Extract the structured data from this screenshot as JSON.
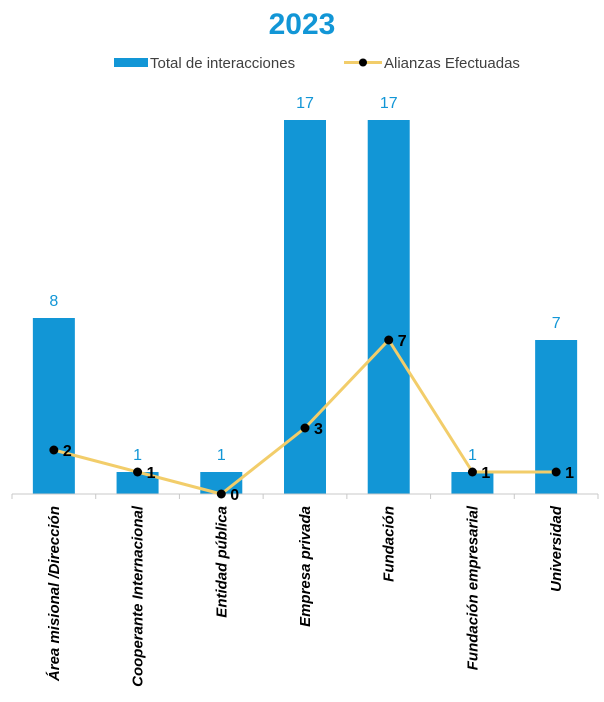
{
  "chart_data": {
    "type": "bar",
    "title": "2023",
    "categories": [
      "Área misional /Dirección",
      "Cooperante Internacional",
      "Entidad pública",
      "Empresa privada",
      "Fundación",
      "Fundación empresarial",
      "Universidad"
    ],
    "series": [
      {
        "name": "Total de interacciones",
        "type": "bar",
        "values": [
          8,
          1,
          1,
          17,
          17,
          1,
          7
        ]
      },
      {
        "name": "Alianzas Efectuadas",
        "type": "line",
        "values": [
          2,
          1,
          0,
          3,
          7,
          1,
          1
        ]
      }
    ],
    "ylim": [
      0,
      17
    ],
    "grid": false,
    "legend_position": "top",
    "colors": {
      "bar": "#1296D6",
      "line": "#F2CD6A",
      "marker": "#000000",
      "title": "#1296D6",
      "bar_label": "#1296D6",
      "axis": "#C8C8C8"
    }
  }
}
